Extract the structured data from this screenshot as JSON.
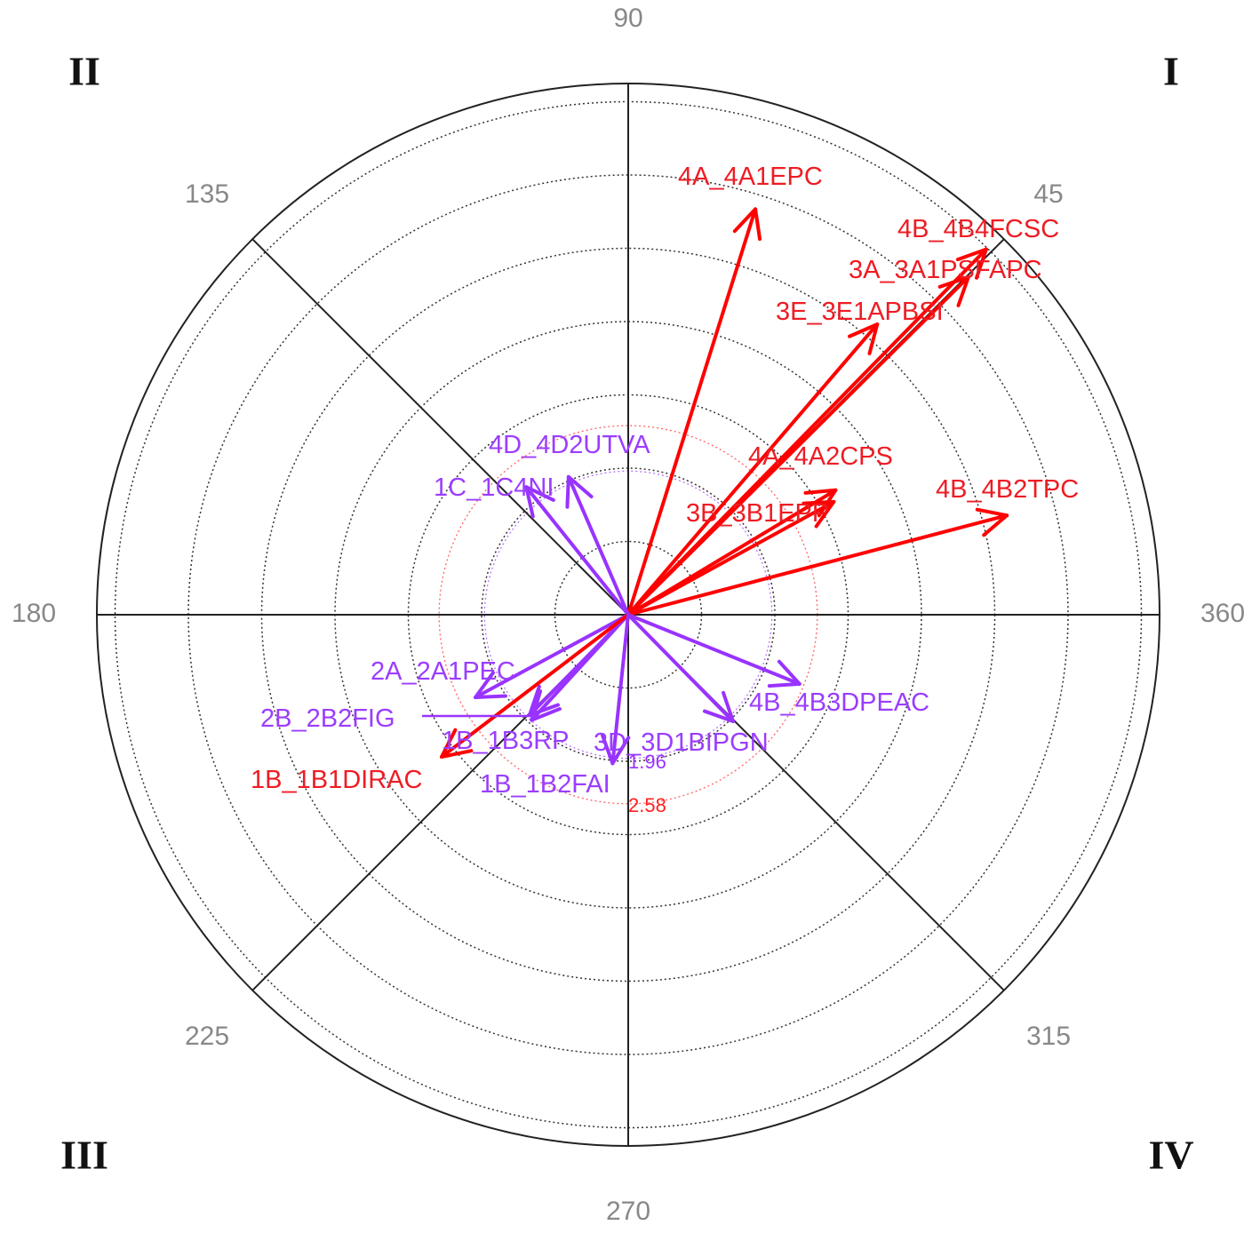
{
  "chart_data": {
    "type": "polar-vector",
    "angle_ticks": [
      "90",
      "45",
      "135",
      "180",
      "360",
      "225",
      "315",
      "270"
    ],
    "quadrants": [
      "I",
      "II",
      "III",
      "IV"
    ],
    "radial_rings": [
      1,
      2,
      3,
      4,
      5,
      6,
      7
    ],
    "reference_circles": [
      {
        "label": "1.96",
        "value": 1.96,
        "color": "#9933ff"
      },
      {
        "label": "2.58",
        "value": 2.58,
        "color": "#ff2020"
      }
    ],
    "colors": {
      "red": "#ff0000",
      "purple": "#9933ff"
    },
    "vectors": [
      {
        "name": "4A_4A1EPC",
        "angle": 72.6,
        "magnitude": 5.8,
        "color": "red"
      },
      {
        "name": "4B_4B4FCSC",
        "angle": 45.6,
        "magnitude": 6.98,
        "color": "red"
      },
      {
        "name": "3A_3A1PSFAPC",
        "angle": 44.8,
        "magnitude": 6.54,
        "color": "red"
      },
      {
        "name": "3E_3E1APBSI",
        "angle": 49.4,
        "magnitude": 5.22,
        "color": "red"
      },
      {
        "name": "4A_4A2CPS",
        "angle": 31.0,
        "magnitude": 3.3,
        "color": "red"
      },
      {
        "name": "3B_3B1EPP",
        "angle": 28.8,
        "magnitude": 3.2,
        "color": "red"
      },
      {
        "name": "4B_4B2TPC",
        "angle": 14.7,
        "magnitude": 5.34,
        "color": "red"
      },
      {
        "name": "4D_4D2UTVA",
        "angle": 113.4,
        "magnitude": 2.05,
        "color": "purple"
      },
      {
        "name": "1C_1C4NI",
        "angle": 128.6,
        "magnitude": 2.23,
        "color": "purple"
      },
      {
        "name": "2A_2A1PEC",
        "angle": 208.4,
        "magnitude": 2.37,
        "color": "purple"
      },
      {
        "name": "2B_2B2FIG",
        "angle": 225.5,
        "magnitude": 1.92,
        "color": "purple"
      },
      {
        "name": "1B_1B3RP",
        "angle": 227.5,
        "magnitude": 1.95,
        "color": "purple"
      },
      {
        "name": "3D_3D1BIPGN",
        "angle": 314.5,
        "magnitude": 2.04,
        "color": "purple"
      },
      {
        "name": "4B_4B3DPEAC",
        "angle": 338.0,
        "magnitude": 2.52,
        "color": "purple"
      },
      {
        "name": "1B_1B1DIRAC",
        "angle": 217.3,
        "magnitude": 3.2,
        "color": "red"
      },
      {
        "name": "1B_1B2FAI",
        "angle": 264.0,
        "magnitude": 2.04,
        "color": "purple"
      }
    ]
  }
}
